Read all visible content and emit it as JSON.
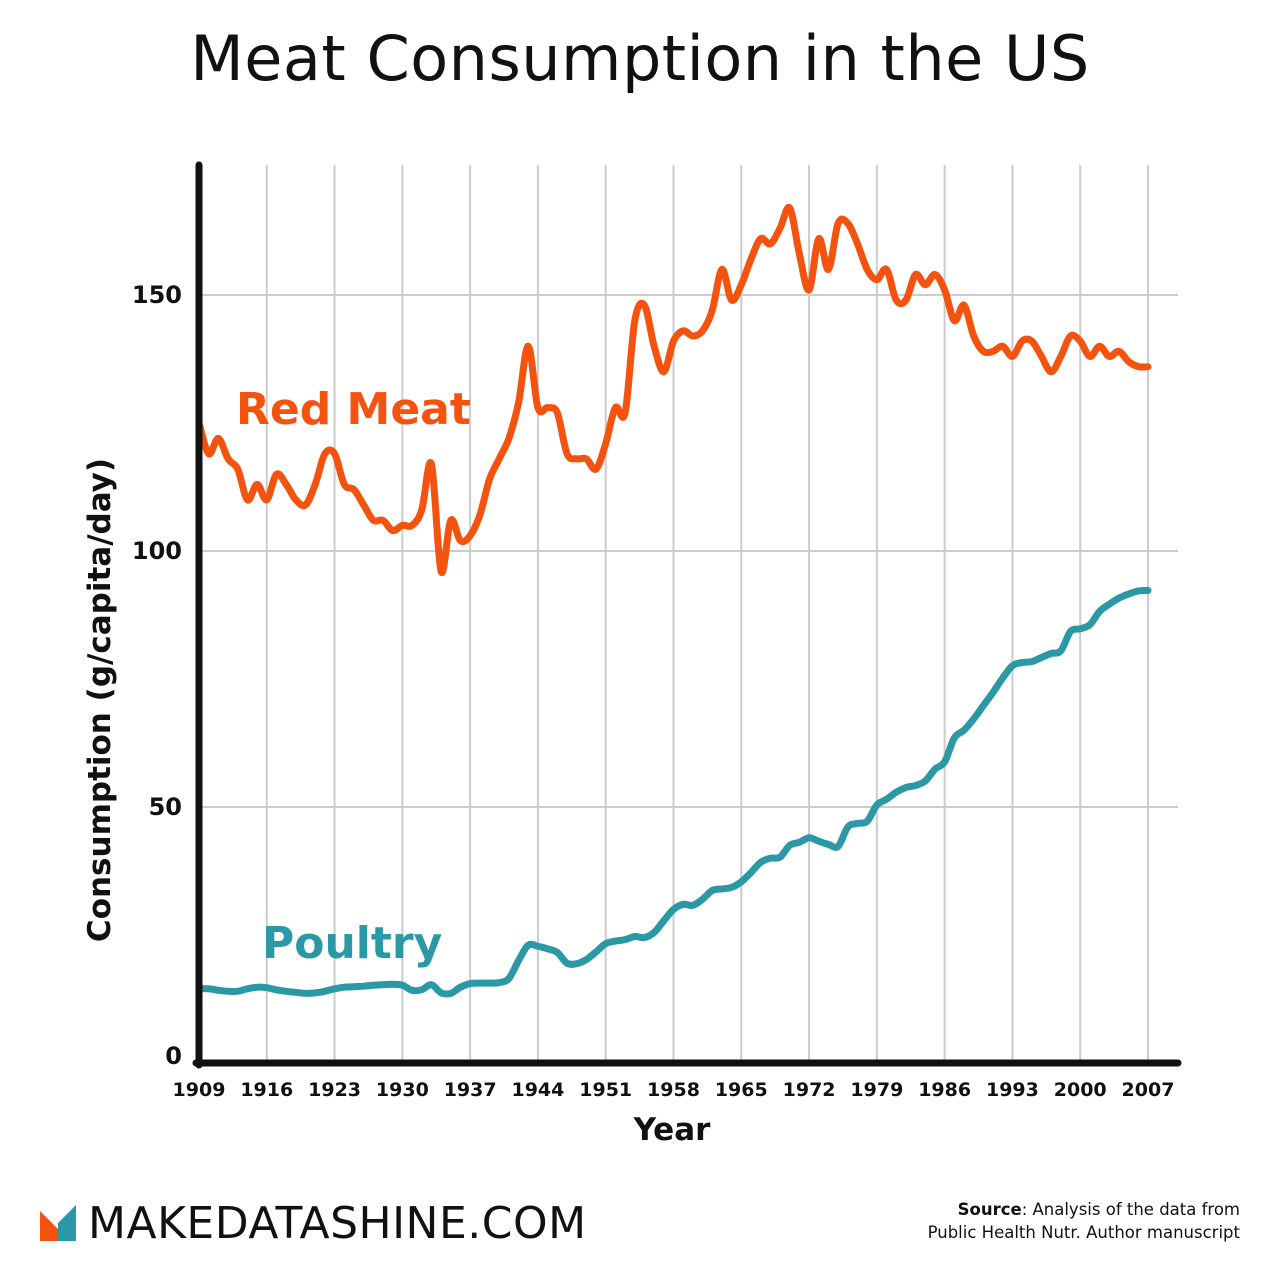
{
  "title": "Meat Consumption in the US",
  "brand": "MAKEDATASHINE.COM",
  "source": {
    "label": "Source",
    "line1": ": Analysis of the data from",
    "line2": "Public Health Nutr. Author manuscript"
  },
  "colors": {
    "red_meat": "#f4520f",
    "poultry": "#2b98a6",
    "grid": "#cccccc",
    "axis": "#111111",
    "logo_orange": "#f4520f",
    "logo_teal": "#2b98a6"
  },
  "chart_data": {
    "type": "line",
    "title": "Meat Consumption in the US",
    "xlabel": "Year",
    "ylabel": "Consumption (g/capita/day)",
    "xlim": [
      1909,
      2010
    ],
    "ylim": [
      0,
      175
    ],
    "x_ticks": [
      1909,
      1916,
      1923,
      1930,
      1937,
      1944,
      1951,
      1958,
      1965,
      1972,
      1979,
      1986,
      1993,
      2000,
      2007
    ],
    "y_ticks": [
      0,
      50,
      100,
      150
    ],
    "grid": true,
    "x": [
      1909,
      1910,
      1911,
      1912,
      1913,
      1914,
      1915,
      1916,
      1917,
      1918,
      1919,
      1920,
      1921,
      1922,
      1923,
      1924,
      1925,
      1926,
      1927,
      1928,
      1929,
      1930,
      1931,
      1932,
      1933,
      1934,
      1935,
      1936,
      1937,
      1938,
      1939,
      1940,
      1941,
      1942,
      1943,
      1944,
      1945,
      1946,
      1947,
      1948,
      1949,
      1950,
      1951,
      1952,
      1953,
      1954,
      1955,
      1956,
      1957,
      1958,
      1959,
      1960,
      1961,
      1962,
      1963,
      1964,
      1965,
      1966,
      1967,
      1968,
      1969,
      1970,
      1971,
      1972,
      1973,
      1974,
      1975,
      1976,
      1977,
      1978,
      1979,
      1980,
      1981,
      1982,
      1983,
      1984,
      1985,
      1986,
      1987,
      1988,
      1989,
      1990,
      1991,
      1992,
      1993,
      1994,
      1995,
      1996,
      1997,
      1998,
      1999,
      2000,
      2001,
      2002,
      2003,
      2004,
      2005,
      2006,
      2007
    ],
    "series": [
      {
        "name": "Red Meat",
        "values": [
          125,
          119,
          122,
          118,
          116,
          110,
          113,
          110,
          115,
          113,
          110,
          109,
          113,
          119,
          119,
          113,
          112,
          109,
          106,
          106,
          104,
          105,
          105,
          108,
          117,
          96,
          106,
          102,
          103,
          107,
          114,
          118,
          122,
          129,
          140,
          128,
          128,
          127,
          119,
          118,
          118,
          116,
          121,
          128,
          127,
          145,
          148,
          140,
          135,
          141,
          143,
          142,
          143,
          147,
          155,
          149,
          152,
          157,
          161,
          160,
          163,
          167,
          158,
          151,
          161,
          155,
          164,
          164,
          160,
          155,
          153,
          155,
          149,
          149,
          154,
          152,
          154,
          151,
          145,
          148,
          142,
          139,
          139,
          140,
          138,
          141,
          141,
          138,
          135,
          138,
          142,
          141,
          138,
          140,
          138,
          139,
          137,
          136,
          136
        ]
      },
      {
        "name": "Poultry",
        "values": [
          14.5,
          14.5,
          14.2,
          14,
          14,
          14.5,
          14.8,
          14.7,
          14.3,
          14,
          13.8,
          13.6,
          13.7,
          14,
          14.5,
          14.8,
          14.9,
          15,
          15.2,
          15.3,
          15.4,
          15.2,
          14.2,
          14.3,
          15.3,
          13.7,
          13.6,
          14.8,
          15.5,
          15.6,
          15.6,
          15.7,
          16.5,
          20,
          23,
          22.8,
          22.3,
          21.6,
          19.5,
          19.4,
          20.2,
          21.7,
          23.3,
          23.8,
          24.1,
          24.7,
          24.5,
          25.5,
          27.8,
          30,
          31,
          30.8,
          32,
          33.7,
          34,
          34.3,
          35.4,
          37.2,
          39.2,
          40,
          40.2,
          42.5,
          43.1,
          44,
          43.3,
          42.7,
          42.3,
          46.1,
          46.8,
          47.2,
          50.4,
          51.5,
          52.9,
          53.8,
          54.2,
          55.1,
          57.4,
          58.8,
          63.5,
          65,
          67.2,
          69.8,
          72.4,
          75.2,
          77.6,
          78.2,
          78.4,
          79.2,
          80,
          80.5,
          84.3,
          84.8,
          85.6,
          88.2,
          89.6,
          90.8,
          91.6,
          92.2,
          92.3
        ]
      }
    ]
  }
}
